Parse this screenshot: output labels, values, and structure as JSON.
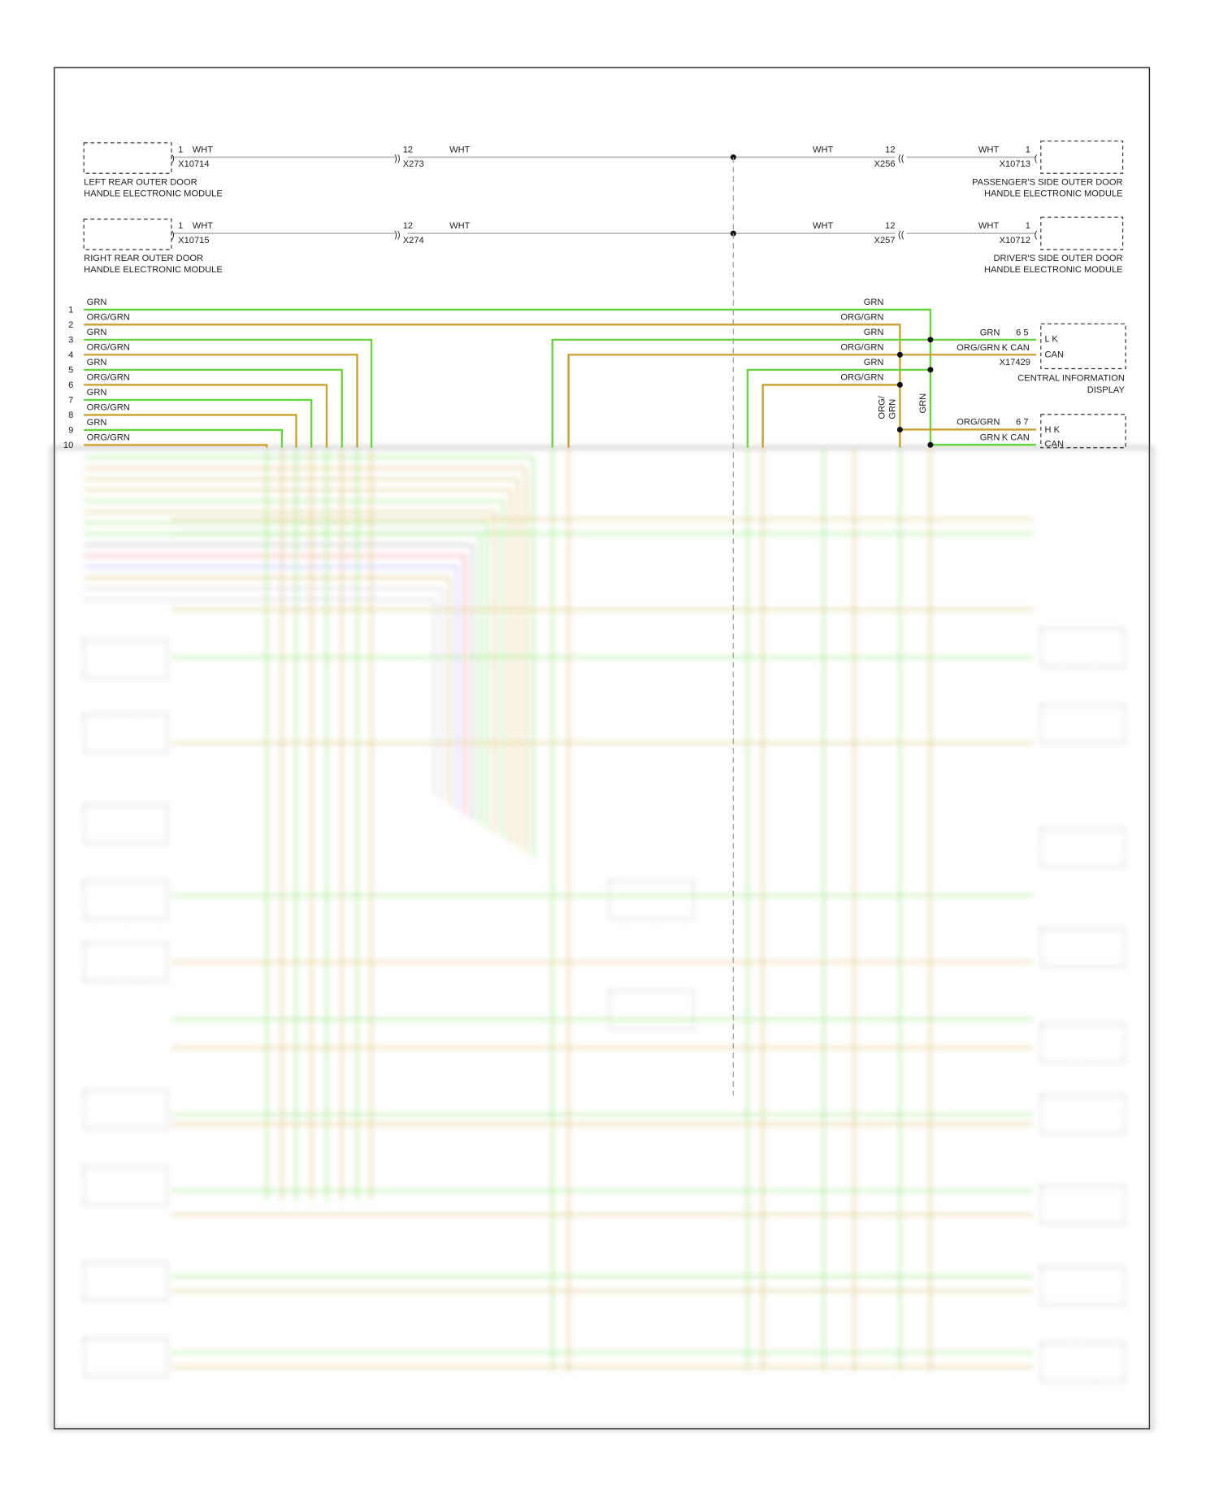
{
  "modules": [
    {
      "lines": [
        "LEFT REAR OUTER DOOR",
        "HANDLE ELECTRONIC MODULE"
      ],
      "pin": "1",
      "wire": "WHT",
      "connector": "X10714"
    },
    {
      "lines": [
        "RIGHT REAR OUTER DOOR",
        "HANDLE ELECTRONIC MODULE"
      ],
      "pin": "1",
      "wire": "WHT",
      "connector": "X10715"
    },
    {
      "lines": [
        "PASSENGER'S SIDE OUTER DOOR",
        "HANDLE ELECTRONIC MODULE"
      ],
      "pin": "1",
      "wire": "WHT",
      "connector": "X10713"
    },
    {
      "lines": [
        "DRIVER'S SIDE OUTER DOOR",
        "HANDLE ELECTRONIC MODULE"
      ],
      "pin": "1",
      "wire": "WHT",
      "connector": "X10712"
    }
  ],
  "inline": [
    {
      "pin": "12",
      "wire": "WHT",
      "connector": "X273"
    },
    {
      "pin": "12",
      "wire": "WHT",
      "connector": "X274"
    },
    {
      "pin": "12",
      "wire": "WHT",
      "connector": "X256"
    },
    {
      "pin": "12",
      "wire": "WHT",
      "connector": "X257"
    }
  ],
  "bus": {
    "pins": [
      "1",
      "2",
      "3",
      "4",
      "5",
      "6",
      "7",
      "8",
      "9",
      "10"
    ],
    "colors": [
      "GRN",
      "ORG/GRN",
      "GRN",
      "ORG/GRN",
      "GRN",
      "ORG/GRN",
      "GRN",
      "ORG/GRN",
      "GRN",
      "ORG/GRN"
    ],
    "right_colors": [
      "GRN",
      "ORG/GRN",
      "GRN",
      "ORG/GRN",
      "GRN",
      "ORG/GRN"
    ]
  },
  "cid": {
    "pins": "6 5",
    "wires": [
      "GRN",
      "ORG/GRN"
    ],
    "signal": "K CAN",
    "terminals": [
      "L K",
      "CAN"
    ],
    "connector": "X17429",
    "lines": [
      "CENTRAL INFORMATION",
      "DISPLAY"
    ]
  },
  "splice_labels": {
    "left": [
      "ORG/",
      "GRN"
    ],
    "right": "GRN"
  },
  "module2": {
    "pins": "6 7",
    "wires": [
      "ORG/GRN",
      "GRN"
    ],
    "signal": "K CAN",
    "terminals": [
      "H K",
      "CAN"
    ]
  }
}
